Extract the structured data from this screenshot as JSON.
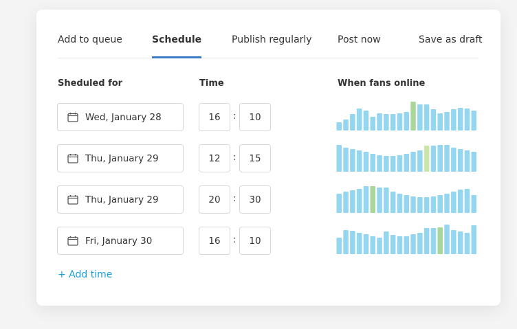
{
  "tabs": [
    {
      "label": "Add to queue"
    },
    {
      "label": "Schedule",
      "active": true
    },
    {
      "label": "Publish regularly"
    },
    {
      "label": "Post now"
    },
    {
      "label": "Save as draft"
    }
  ],
  "labels": {
    "date": "Sheduled for",
    "time": "Time",
    "fans": "When fans online"
  },
  "colors": {
    "bar": "#94d5f0",
    "highlight": "#a8d69b",
    "highlight_light": "#c9e5a8",
    "accent": "#3b7ac8",
    "link": "#1a9ed8"
  },
  "rows": [
    {
      "date": "Wed, January 28",
      "hour": "16",
      "minute": "10",
      "fans": [
        12,
        16,
        24,
        32,
        29,
        20,
        25,
        24,
        24,
        25,
        27,
        42,
        38,
        38,
        31,
        25,
        27,
        31,
        33,
        32,
        29
      ],
      "best": 11,
      "best_color": "highlight"
    },
    {
      "date": "Thu, January 29",
      "hour": "12",
      "minute": "15",
      "fans": [
        39,
        35,
        33,
        31,
        29,
        26,
        24,
        23,
        23,
        24,
        26,
        29,
        31,
        38,
        38,
        39,
        39,
        35,
        33,
        31,
        29
      ],
      "best": 13,
      "best_color": "highlight_light"
    },
    {
      "date": "Thu, January 29",
      "hour": "20",
      "minute": "30",
      "fans": [
        28,
        31,
        33,
        35,
        39,
        39,
        37,
        37,
        31,
        28,
        26,
        24,
        23,
        23,
        24,
        26,
        28,
        31,
        34,
        35,
        26
      ],
      "best": 5,
      "best_color": "highlight"
    },
    {
      "date": "Fri, January 30",
      "hour": "16",
      "minute": "10",
      "fans": [
        24,
        35,
        34,
        31,
        29,
        26,
        24,
        33,
        28,
        26,
        26,
        29,
        31,
        38,
        38,
        39,
        43,
        35,
        33,
        31,
        42
      ],
      "best": 15,
      "best_color": "highlight"
    }
  ],
  "add_time": "+ Add time"
}
